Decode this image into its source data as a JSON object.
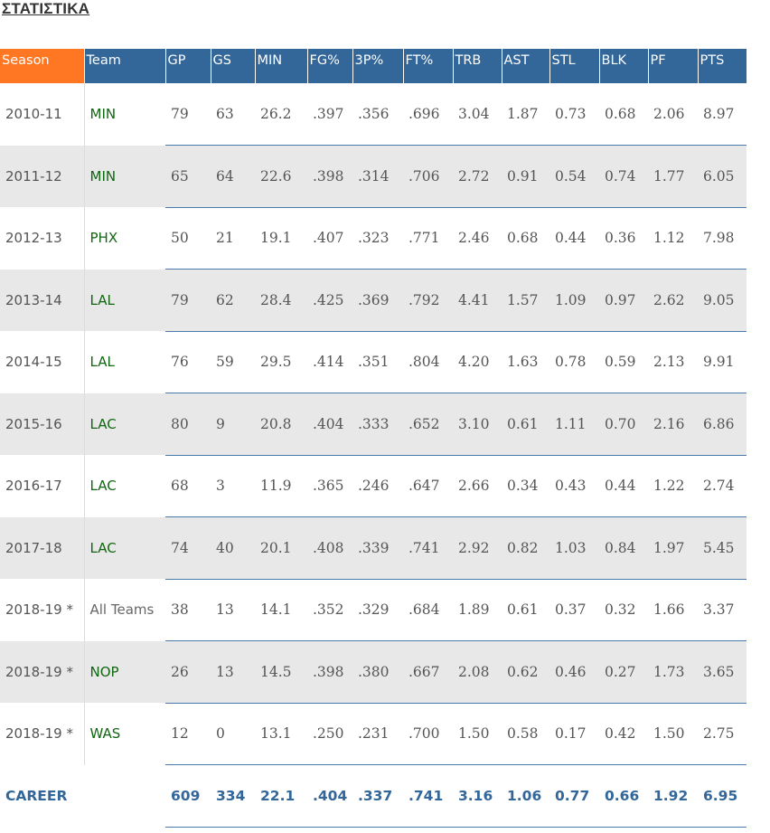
{
  "page": {
    "title": "ΣΤΑΤΙΣΤΙΚΑ"
  },
  "table": {
    "headers": [
      "Season",
      "Team",
      "GP",
      "GS",
      "MIN",
      "FG%",
      "3P%",
      "FT%",
      "TRB",
      "AST",
      "STL",
      "BLK",
      "PF",
      "PTS"
    ],
    "rows": [
      [
        "2010-11",
        "MIN",
        "79",
        "63",
        "26.2",
        ".397",
        ".356",
        ".696",
        "3.04",
        "1.87",
        "0.73",
        "0.68",
        "2.06",
        "8.97"
      ],
      [
        "2011-12",
        "MIN",
        "65",
        "64",
        "22.6",
        ".398",
        ".314",
        ".706",
        "2.72",
        "0.91",
        "0.54",
        "0.74",
        "1.77",
        "6.05"
      ],
      [
        "2012-13",
        "PHX",
        "50",
        "21",
        "19.1",
        ".407",
        ".323",
        ".771",
        "2.46",
        "0.68",
        "0.44",
        "0.36",
        "1.12",
        "7.98"
      ],
      [
        "2013-14",
        "LAL",
        "79",
        "62",
        "28.4",
        ".425",
        ".369",
        ".792",
        "4.41",
        "1.57",
        "1.09",
        "0.97",
        "2.62",
        "9.05"
      ],
      [
        "2014-15",
        "LAL",
        "76",
        "59",
        "29.5",
        ".414",
        ".351",
        ".804",
        "4.20",
        "1.63",
        "0.78",
        "0.59",
        "2.13",
        "9.91"
      ],
      [
        "2015-16",
        "LAC",
        "80",
        "9",
        "20.8",
        ".404",
        ".333",
        ".652",
        "3.10",
        "0.61",
        "1.11",
        "0.70",
        "2.16",
        "6.86"
      ],
      [
        "2016-17",
        "LAC",
        "68",
        "3",
        "11.9",
        ".365",
        ".246",
        ".647",
        "2.66",
        "0.34",
        "0.43",
        "0.44",
        "1.22",
        "2.74"
      ],
      [
        "2017-18",
        "LAC",
        "74",
        "40",
        "20.1",
        ".408",
        ".339",
        ".741",
        "2.92",
        "0.82",
        "1.03",
        "0.84",
        "1.97",
        "5.45"
      ],
      [
        "2018-19 *",
        "All Teams",
        "38",
        "13",
        "14.1",
        ".352",
        ".329",
        ".684",
        "1.89",
        "0.61",
        "0.37",
        "0.32",
        "1.66",
        "3.37"
      ],
      [
        "2018-19 *",
        "NOP",
        "26",
        "13",
        "14.5",
        ".398",
        ".380",
        ".667",
        "2.08",
        "0.62",
        "0.46",
        "0.27",
        "1.73",
        "3.65"
      ],
      [
        "2018-19 *",
        "WAS",
        "12",
        "0",
        "13.1",
        ".250",
        ".231",
        ".700",
        "1.50",
        "0.58",
        "0.17",
        "0.42",
        "1.50",
        "2.75"
      ]
    ],
    "career": [
      "CAREER",
      "",
      "609",
      "334",
      "22.1",
      ".404",
      ".337",
      ".741",
      "3.16",
      "1.06",
      "0.77",
      "0.66",
      "1.92",
      "6.95"
    ]
  },
  "colors": {
    "header_bg": "#336699",
    "season_header_bg": "#ff7722",
    "team_text": "#116611",
    "career_text": "#336699",
    "row_shade": "#e8e8e8"
  }
}
